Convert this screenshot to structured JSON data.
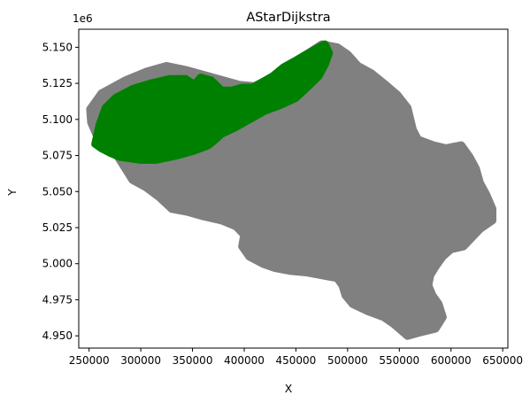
{
  "chart_data": {
    "type": "scatter",
    "title": "AStarDijkstra",
    "xlabel": "X",
    "ylabel": "Y",
    "y_offset_label": "1e6",
    "xlim": [
      240000,
      655000
    ],
    "ylim": [
      4.9415,
      5.1625
    ],
    "x_ticks": [
      250000,
      300000,
      350000,
      400000,
      450000,
      500000,
      550000,
      600000,
      650000
    ],
    "x_tick_labels": [
      "250000",
      "300000",
      "350000",
      "400000",
      "450000",
      "500000",
      "550000",
      "600000",
      "650000"
    ],
    "y_ticks": [
      4.95,
      4.975,
      5.0,
      5.025,
      5.05,
      5.075,
      5.1,
      5.125,
      5.15
    ],
    "y_tick_labels": [
      "4.950",
      "4.975",
      "5.000",
      "5.025",
      "5.050",
      "5.075",
      "5.100",
      "5.125",
      "5.150"
    ],
    "grid": false,
    "series": [
      {
        "color": "#808080",
        "description_of_extent": "all explored nodes",
        "outline": [
          [
            251000,
            5.107
          ],
          [
            262000,
            5.118
          ],
          [
            285000,
            5.127
          ],
          [
            305000,
            5.133
          ],
          [
            325000,
            5.137
          ],
          [
            345000,
            5.134
          ],
          [
            365000,
            5.13
          ],
          [
            380000,
            5.127
          ],
          [
            395000,
            5.124
          ],
          [
            410000,
            5.123
          ],
          [
            430000,
            5.13
          ],
          [
            445000,
            5.138
          ],
          [
            460000,
            5.145
          ],
          [
            475000,
            5.152
          ],
          [
            490000,
            5.15
          ],
          [
            500000,
            5.145
          ],
          [
            510000,
            5.137
          ],
          [
            523000,
            5.132
          ],
          [
            535000,
            5.125
          ],
          [
            548000,
            5.117
          ],
          [
            558000,
            5.108
          ],
          [
            563000,
            5.093
          ],
          [
            568000,
            5.086
          ],
          [
            583000,
            5.082
          ],
          [
            595000,
            5.08
          ],
          [
            610000,
            5.082
          ],
          [
            618000,
            5.074
          ],
          [
            624000,
            5.066
          ],
          [
            628000,
            5.056
          ],
          [
            634000,
            5.048
          ],
          [
            640000,
            5.038
          ],
          [
            640000,
            5.03
          ],
          [
            628000,
            5.024
          ],
          [
            620000,
            5.018
          ],
          [
            612000,
            5.012
          ],
          [
            600000,
            5.01
          ],
          [
            592000,
            5.005
          ],
          [
            585000,
            4.998
          ],
          [
            580000,
            4.992
          ],
          [
            578000,
            4.985
          ],
          [
            582000,
            4.978
          ],
          [
            588000,
            4.972
          ],
          [
            592000,
            4.963
          ],
          [
            585000,
            4.955
          ],
          [
            568000,
            4.952
          ],
          [
            558000,
            4.95
          ],
          [
            545000,
            4.958
          ],
          [
            535000,
            4.963
          ],
          [
            520000,
            4.967
          ],
          [
            505000,
            4.972
          ],
          [
            498000,
            4.978
          ],
          [
            495000,
            4.985
          ],
          [
            490000,
            4.99
          ],
          [
            475000,
            4.992
          ],
          [
            460000,
            4.994
          ],
          [
            445000,
            4.995
          ],
          [
            430000,
            4.997
          ],
          [
            418000,
            5.0
          ],
          [
            405000,
            5.005
          ],
          [
            398000,
            5.012
          ],
          [
            400000,
            5.02
          ],
          [
            392000,
            5.026
          ],
          [
            378000,
            5.03
          ],
          [
            360000,
            5.033
          ],
          [
            345000,
            5.036
          ],
          [
            330000,
            5.038
          ],
          [
            318000,
            5.046
          ],
          [
            305000,
            5.053
          ],
          [
            292000,
            5.058
          ],
          [
            285000,
            5.066
          ],
          [
            278000,
            5.074
          ],
          [
            268000,
            5.08
          ],
          [
            258000,
            5.088
          ],
          [
            252000,
            5.098
          ]
        ]
      },
      {
        "color": "#008000",
        "description_of_extent": "path region",
        "outline": [
          [
            256000,
            5.083
          ],
          [
            260000,
            5.096
          ],
          [
            266000,
            5.108
          ],
          [
            276000,
            5.115
          ],
          [
            292000,
            5.121
          ],
          [
            310000,
            5.125
          ],
          [
            328000,
            5.128
          ],
          [
            343000,
            5.128
          ],
          [
            352000,
            5.124
          ],
          [
            358000,
            5.129
          ],
          [
            368000,
            5.127
          ],
          [
            378000,
            5.12
          ],
          [
            388000,
            5.12
          ],
          [
            398000,
            5.122
          ],
          [
            408000,
            5.122
          ],
          [
            418000,
            5.126
          ],
          [
            428000,
            5.13
          ],
          [
            438000,
            5.136
          ],
          [
            448000,
            5.14
          ],
          [
            460000,
            5.145
          ],
          [
            470000,
            5.149
          ],
          [
            478000,
            5.152
          ],
          [
            482000,
            5.146
          ],
          [
            478000,
            5.138
          ],
          [
            472000,
            5.13
          ],
          [
            462000,
            5.123
          ],
          [
            450000,
            5.115
          ],
          [
            435000,
            5.11
          ],
          [
            420000,
            5.106
          ],
          [
            405000,
            5.1
          ],
          [
            390000,
            5.094
          ],
          [
            378000,
            5.09
          ],
          [
            372000,
            5.086
          ],
          [
            365000,
            5.082
          ],
          [
            350000,
            5.078
          ],
          [
            335000,
            5.075
          ],
          [
            315000,
            5.072
          ],
          [
            300000,
            5.072
          ],
          [
            290000,
            5.073
          ],
          [
            280000,
            5.074
          ],
          [
            270000,
            5.077
          ],
          [
            262000,
            5.08
          ]
        ]
      }
    ]
  }
}
